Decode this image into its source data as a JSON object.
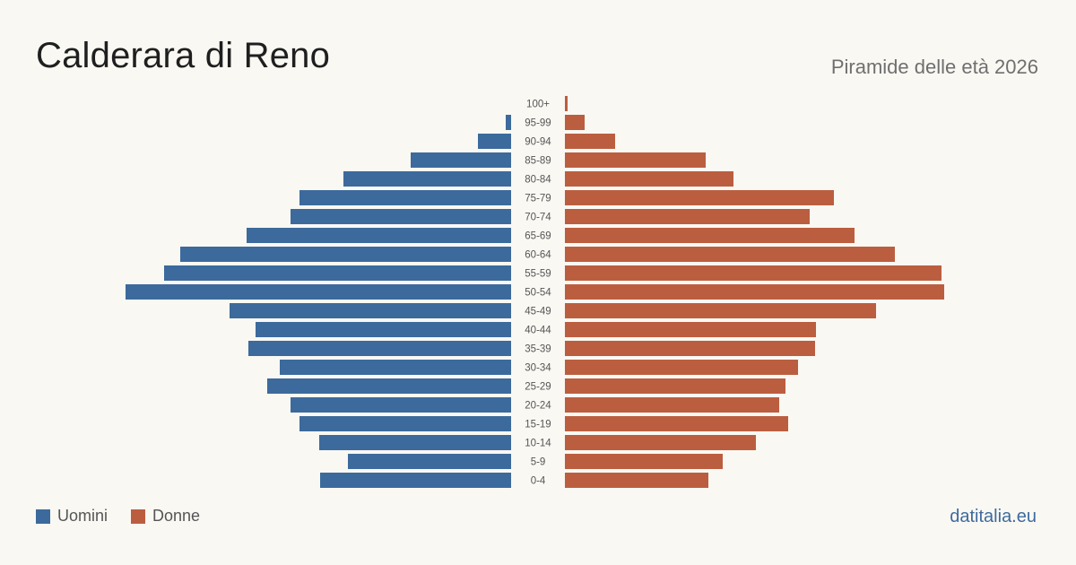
{
  "header": {
    "title": "Calderara di Reno",
    "subtitle": "Piramide delle età 2026"
  },
  "legend": {
    "men_label": "Uomini",
    "women_label": "Donne"
  },
  "brand": "datitalia.eu",
  "colors": {
    "men": "#3c6a9c",
    "women": "#bb5e3f",
    "background": "#faf8f3",
    "label": "#555555"
  },
  "chart_data": {
    "type": "bar",
    "orientation": "horizontal-pyramid",
    "categories": [
      "100+",
      "95-99",
      "90-94",
      "85-89",
      "80-84",
      "75-79",
      "70-74",
      "65-69",
      "60-64",
      "55-59",
      "50-54",
      "45-49",
      "40-44",
      "35-39",
      "30-34",
      "25-29",
      "20-24",
      "15-19",
      "10-14",
      "5-9",
      "0-4"
    ],
    "series": [
      {
        "name": "Uomini",
        "values": [
          0,
          6,
          37,
          112,
          187,
          236,
          246,
          295,
          369,
          387,
          430,
          314,
          285,
          293,
          258,
          272,
          246,
          236,
          214,
          182,
          213
        ]
      },
      {
        "name": "Donne",
        "values": [
          3,
          22,
          56,
          157,
          188,
          300,
          273,
          323,
          368,
          420,
          423,
          347,
          280,
          279,
          260,
          246,
          239,
          249,
          213,
          176,
          160
        ]
      }
    ],
    "xlim": [
      0,
      430
    ],
    "grid": false,
    "legend_position": "bottom-left"
  }
}
